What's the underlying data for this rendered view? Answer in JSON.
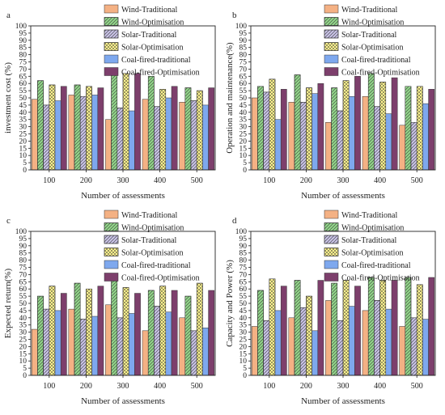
{
  "series_styles": [
    {
      "fill": "#f4b184",
      "pattern": "none"
    },
    {
      "fill": "#92d68a",
      "pattern": "diag-back"
    },
    {
      "fill": "#c9c3e6",
      "pattern": "diag-back"
    },
    {
      "fill": "#fff48f",
      "pattern": "cross"
    },
    {
      "fill": "#7ea8ee",
      "pattern": "none"
    },
    {
      "fill": "#7d3f6c",
      "pattern": "none"
    }
  ],
  "chart_data": [
    {
      "type": "bar",
      "panel_label": "a",
      "xlabel": "Number of assessments",
      "ylabel": "investment cost (%)",
      "categories": [
        "100",
        "200",
        "300",
        "400",
        "500"
      ],
      "ylim": [
        0,
        100
      ],
      "yticks": [
        0,
        5,
        10,
        15,
        20,
        25,
        30,
        35,
        40,
        45,
        50,
        55,
        60,
        65,
        70,
        75,
        80,
        85,
        90,
        95,
        100
      ],
      "legend_position": "top-right",
      "series": [
        {
          "name": "Wind-Traditional",
          "values": [
            49,
            52,
            35,
            49,
            47
          ]
        },
        {
          "name": "Wind-Optimisation",
          "values": [
            62,
            59,
            67,
            65,
            57
          ]
        },
        {
          "name": "Solar-Traditional",
          "values": [
            45,
            51,
            43,
            44,
            48
          ]
        },
        {
          "name": "Solar-Optimisation",
          "values": [
            59,
            58,
            67,
            56,
            55
          ]
        },
        {
          "name": "Coal-fired-traditional",
          "values": [
            48,
            52,
            41,
            50,
            45
          ]
        },
        {
          "name": "Coal-fired-Optimisation",
          "values": [
            58,
            57,
            67,
            58,
            57
          ]
        }
      ]
    },
    {
      "type": "bar",
      "panel_label": "b",
      "xlabel": "Number of assessments",
      "ylabel": "Operation and maintenance(%)",
      "categories": [
        "100",
        "200",
        "300",
        "400",
        "500"
      ],
      "ylim": [
        0,
        100
      ],
      "yticks": [
        0,
        5,
        10,
        15,
        20,
        25,
        30,
        35,
        40,
        45,
        50,
        55,
        60,
        65,
        70,
        75,
        80,
        85,
        90,
        95,
        100
      ],
      "legend_position": "top-right",
      "series": [
        {
          "name": "Wind-Traditional",
          "values": [
            50,
            47,
            33,
            51,
            31
          ]
        },
        {
          "name": "Wind-Optimisation",
          "values": [
            58,
            66,
            57,
            67,
            58
          ]
        },
        {
          "name": "Solar-Traditional",
          "values": [
            54,
            47,
            41,
            44,
            33
          ]
        },
        {
          "name": "Solar-Optimisation",
          "values": [
            63,
            57,
            62,
            61,
            58
          ]
        },
        {
          "name": "Coal-fired-traditional",
          "values": [
            35,
            53,
            51,
            39,
            46
          ]
        },
        {
          "name": "Coal-fired-Optimisation",
          "values": [
            56,
            60,
            65,
            64,
            56
          ]
        }
      ]
    },
    {
      "type": "bar",
      "panel_label": "c",
      "xlabel": "Number of assessments",
      "ylabel": "Expected return(%)",
      "categories": [
        "100",
        "200",
        "300",
        "400",
        "500"
      ],
      "ylim": [
        0,
        100
      ],
      "yticks": [
        0,
        5,
        10,
        15,
        20,
        25,
        30,
        35,
        40,
        45,
        50,
        55,
        60,
        65,
        70,
        75,
        80,
        85,
        90,
        95,
        100
      ],
      "legend_position": "top-right",
      "series": [
        {
          "name": "Wind-Traditional",
          "values": [
            32,
            46,
            49,
            31,
            40
          ]
        },
        {
          "name": "Wind-Optimisation",
          "values": [
            55,
            64,
            68,
            59,
            55
          ]
        },
        {
          "name": "Solar-Traditional",
          "values": [
            46,
            39,
            40,
            48,
            31
          ]
        },
        {
          "name": "Solar-Optimisation",
          "values": [
            62,
            60,
            61,
            62,
            64
          ]
        },
        {
          "name": "Coal-fired-traditional",
          "values": [
            45,
            41,
            43,
            44,
            33
          ]
        },
        {
          "name": "Coal-fired-Optimisation",
          "values": [
            57,
            62,
            57,
            59,
            59
          ]
        }
      ]
    },
    {
      "type": "bar",
      "panel_label": "d",
      "xlabel": "Number of assessments",
      "ylabel": "Capacity and Power (%)",
      "categories": [
        "100",
        "200",
        "300",
        "400",
        "500"
      ],
      "ylim": [
        0,
        100
      ],
      "yticks": [
        0,
        5,
        10,
        15,
        20,
        25,
        30,
        35,
        40,
        45,
        50,
        55,
        60,
        65,
        70,
        75,
        80,
        85,
        90,
        95,
        100
      ],
      "legend_position": "top-right",
      "series": [
        {
          "name": "Wind-Traditional",
          "values": [
            34,
            40,
            52,
            45,
            34
          ]
        },
        {
          "name": "Wind-Optimisation",
          "values": [
            59,
            66,
            64,
            68,
            68
          ]
        },
        {
          "name": "Solar-Traditional",
          "values": [
            38,
            47,
            38,
            52,
            40
          ]
        },
        {
          "name": "Solar-Optimisation",
          "values": [
            67,
            55,
            66,
            66,
            63
          ]
        },
        {
          "name": "Coal-fired-traditional",
          "values": [
            45,
            31,
            48,
            46,
            39
          ]
        },
        {
          "name": "Coal-fired-Optimisation",
          "values": [
            62,
            66,
            62,
            66,
            68
          ]
        }
      ]
    }
  ]
}
